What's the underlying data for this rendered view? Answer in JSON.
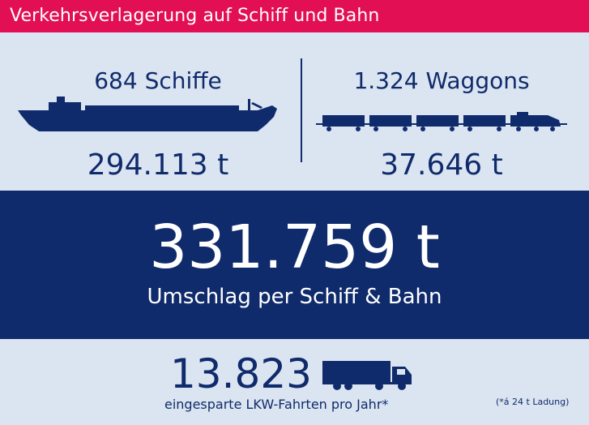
{
  "header": {
    "title": "Verkehrsverlagerung auf Schiff und Bahn"
  },
  "ship": {
    "count": "684 Schiffe",
    "tons": "294.113 t",
    "icon": "ship-icon"
  },
  "rail": {
    "count": "1.324 Waggons",
    "tons": "37.646 t",
    "icon": "train-icon"
  },
  "total": {
    "tons": "331.759 t",
    "label": "Umschlag per Schiff & Bahn"
  },
  "trucks": {
    "count": "13.823",
    "label": "eingesparte LKW-Fahrten pro Jahr*",
    "icon": "truck-icon"
  },
  "footnote": "(*á 24 t Ladung)",
  "colors": {
    "header": "#e20f55",
    "navy": "#0f2b6b",
    "background": "#dbe4f1"
  }
}
